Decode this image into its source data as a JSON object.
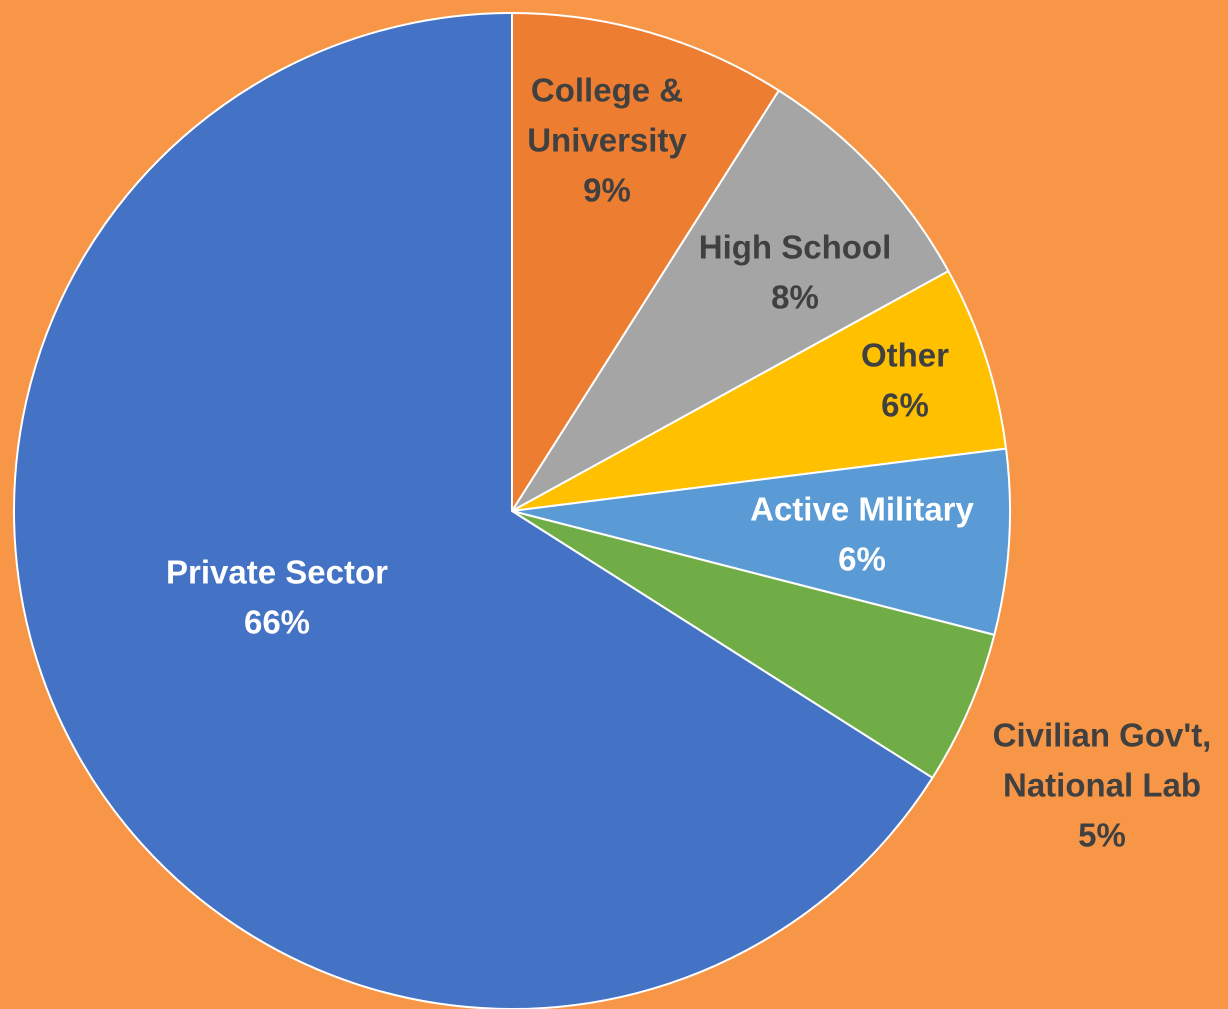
{
  "background_color": "#F79646",
  "chart_data": {
    "type": "pie",
    "start": "12 o'clock",
    "direction": "clockwise",
    "slices": [
      {
        "name": "College & University",
        "label_lines": [
          "College &",
          "University",
          "9%"
        ],
        "value": 9,
        "color": "#ED7D31",
        "label_color": "#404040"
      },
      {
        "name": "High School",
        "label_lines": [
          "High School",
          "8%"
        ],
        "value": 8,
        "color": "#A5A5A5",
        "label_color": "#404040"
      },
      {
        "name": "Other",
        "label_lines": [
          "Other",
          "6%"
        ],
        "value": 6,
        "color": "#FFC000",
        "label_color": "#404040"
      },
      {
        "name": "Active Military",
        "label_lines": [
          "Active Military",
          "6%"
        ],
        "value": 6,
        "color": "#5B9BD5",
        "label_color": "#FFFFFF"
      },
      {
        "name": "Civilian Gov't, National Lab",
        "label_lines": [
          "Civilian Gov't,",
          "National Lab",
          "5%"
        ],
        "value": 5,
        "color": "#70AD47",
        "label_color": "#404040",
        "label_outside": true
      },
      {
        "name": "Private Sector",
        "label_lines": [
          "Private Sector",
          "66%"
        ],
        "value": 66,
        "color": "#4472C4",
        "label_color": "#FFFFFF"
      }
    ]
  }
}
